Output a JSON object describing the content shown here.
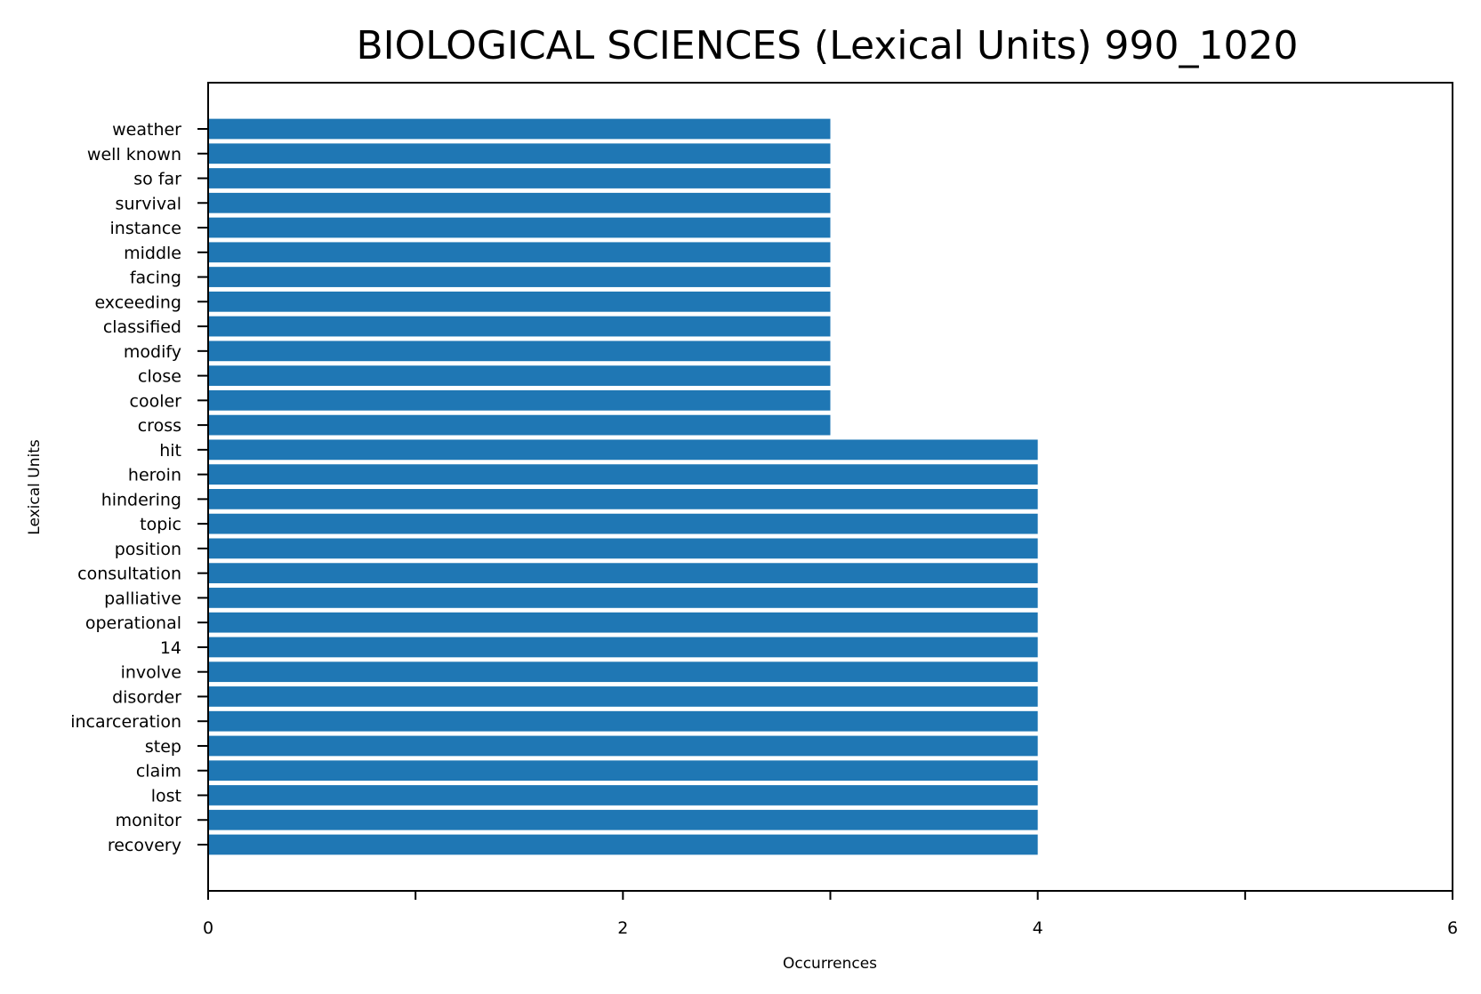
{
  "chart_data": {
    "type": "bar",
    "orientation": "horizontal",
    "title": "BIOLOGICAL SCIENCES (Lexical Units) 990_1020",
    "xlabel": "Occurrences",
    "ylabel": "Lexical Units",
    "xlim": [
      0,
      6
    ],
    "xticks": [
      0,
      1,
      2,
      3,
      4,
      5,
      6
    ],
    "xtick_labels": [
      "0",
      "",
      "2",
      "",
      "4",
      "",
      "6"
    ],
    "bar_color": "#1f77b4",
    "grid": false,
    "legend": "none",
    "categories": [
      "weather",
      "well known",
      "so far",
      "survival",
      "instance",
      "middle",
      "facing",
      "exceeding",
      "classified",
      "modify",
      "close",
      "cooler",
      "cross",
      "hit",
      "heroin",
      "hindering",
      "topic",
      "position",
      "consultation",
      "palliative",
      "operational",
      "14",
      "involve",
      "disorder",
      "incarceration",
      "step",
      "claim",
      "lost",
      "monitor",
      "recovery"
    ],
    "values": [
      3,
      3,
      3,
      3,
      3,
      3,
      3,
      3,
      3,
      3,
      3,
      3,
      3,
      4,
      4,
      4,
      4,
      4,
      4,
      4,
      4,
      4,
      4,
      4,
      4,
      4,
      4,
      4,
      4,
      4
    ]
  }
}
